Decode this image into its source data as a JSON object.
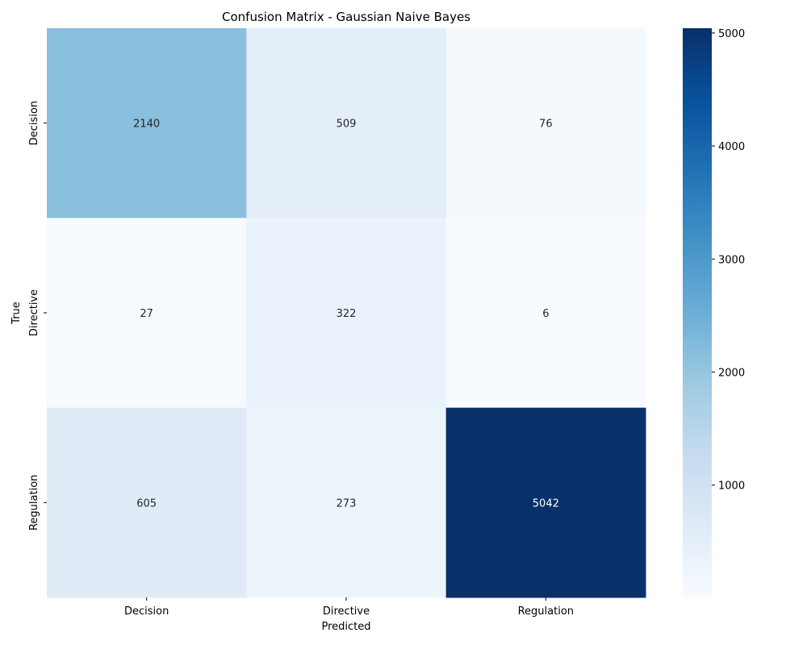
{
  "chart_data": {
    "type": "heatmap",
    "title": "Confusion Matrix - Gaussian Naive Bayes",
    "xlabel": "Predicted",
    "ylabel": "True",
    "x_categories": [
      "Decision",
      "Directive",
      "Regulation"
    ],
    "y_categories": [
      "Decision",
      "Directive",
      "Regulation"
    ],
    "values": [
      [
        2140,
        509,
        76
      ],
      [
        27,
        322,
        6
      ],
      [
        605,
        273,
        5042
      ]
    ],
    "colormap": "Blues",
    "color_low": "#f7fbff",
    "color_high": "#08306b",
    "vmin": 6,
    "vmax": 5042,
    "colorbar_ticks": [
      1000,
      2000,
      3000,
      4000,
      5000
    ],
    "colorbar_tick_labels": [
      "1000",
      "2000",
      "3000",
      "4000",
      "5000"
    ],
    "annotation_light_color": "#ffffff",
    "annotation_dark_color": "#262626"
  }
}
